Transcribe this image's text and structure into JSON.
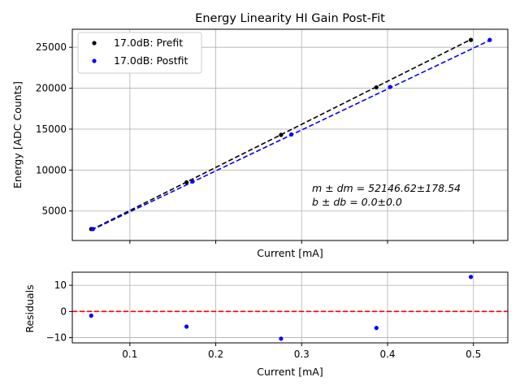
{
  "chart_data": [
    {
      "type": "scatter",
      "title": "Energy Linearity HI Gain Post-Fit",
      "xlabel": "Current [mA]",
      "ylabel": "Energy [ADC Counts]",
      "xlim": [
        0.033,
        0.54
      ],
      "ylim": [
        1400,
        27200
      ],
      "yticks": [
        5000,
        10000,
        15000,
        20000,
        25000
      ],
      "grid": true,
      "legend_position": "top-left",
      "series": [
        {
          "name": "17.0dB: Prefit",
          "color": "#000000",
          "marker": "dot",
          "x": [
            0.055,
            0.166,
            0.276,
            0.387,
            0.497
          ],
          "y": [
            2800,
            8500,
            14300,
            20100,
            25900
          ],
          "fit": {
            "x": [
              0.055,
              0.497
            ],
            "y": [
              2700,
              25950
            ]
          }
        },
        {
          "name": "17.0dB: Postfit",
          "color": "#0000ff",
          "marker": "dot",
          "x": [
            0.057,
            0.173,
            0.288,
            0.403,
            0.519
          ],
          "y": [
            2800,
            8600,
            14350,
            20150,
            25900
          ],
          "fit": {
            "x": [
              0.055,
              0.519
            ],
            "y": [
              2650,
              25850
            ]
          }
        }
      ],
      "annotations": [
        "m ± dm = 52146.62±178.54",
        "b ± db = 0.0±0.0"
      ]
    },
    {
      "type": "scatter",
      "xlabel": "Current [mA]",
      "ylabel": "Residuals",
      "xlim": [
        0.033,
        0.54
      ],
      "ylim": [
        -12,
        15
      ],
      "xticks": [
        0.1,
        0.2,
        0.3,
        0.4,
        0.5
      ],
      "yticks": [
        -10,
        0,
        10
      ],
      "grid": true,
      "reference_line": {
        "y": 0,
        "color": "#ff0000",
        "style": "dashed"
      },
      "series": [
        {
          "name": "residuals",
          "color": "#0000ff",
          "x": [
            0.055,
            0.166,
            0.276,
            0.387,
            0.497
          ],
          "y": [
            -1.6,
            -5.8,
            -10.4,
            -6.3,
            13.2
          ]
        }
      ]
    }
  ]
}
